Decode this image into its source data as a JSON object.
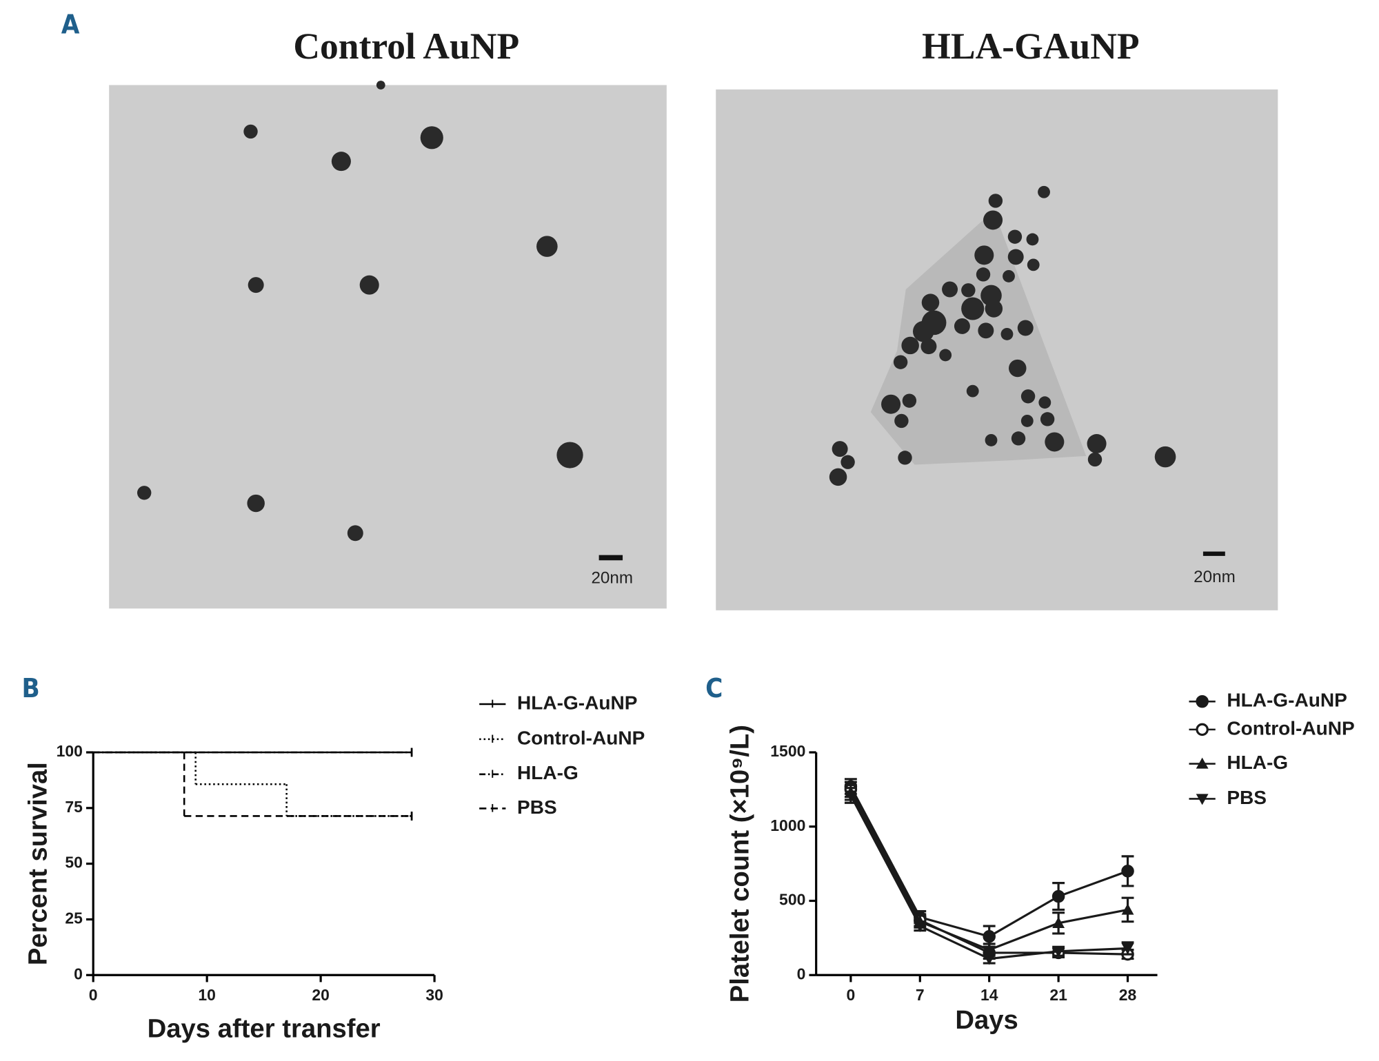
{
  "figure": {
    "panel_labels": [
      "A",
      "B",
      "C"
    ],
    "images": [
      {
        "title": "Control AuNP",
        "scale_bar": "20nm"
      },
      {
        "title": "HLA-GAuNP",
        "scale_bar": "20nm"
      }
    ]
  },
  "chart_data": [
    {
      "type": "step",
      "x_label": "Days after transfer",
      "y_label": "Percent survival",
      "xlim": [
        0,
        30
      ],
      "xticks": [
        0,
        10,
        20,
        30
      ],
      "ylim": [
        0,
        100
      ],
      "yticks": [
        0,
        25,
        50,
        75,
        100
      ],
      "series": [
        {
          "name": "HLA-G-AuNP",
          "color": "#000000",
          "linestyle": "solid",
          "x": [
            0,
            28
          ],
          "values": [
            100,
            100
          ]
        },
        {
          "name": "Control-AuNP",
          "color": "#000000",
          "linestyle": "dotted",
          "x": [
            0,
            9,
            17,
            28
          ],
          "values": [
            100,
            85.7,
            71.4,
            71.4
          ]
        },
        {
          "name": "HLA-G",
          "color": "#000000",
          "linestyle": "dashdot",
          "x": [
            0,
            28
          ],
          "values": [
            100,
            100
          ]
        },
        {
          "name": "PBS",
          "color": "#000000",
          "linestyle": "dashed",
          "x": [
            0,
            8,
            28
          ],
          "values": [
            100,
            71.4,
            71.4
          ]
        }
      ]
    },
    {
      "type": "line",
      "x_label": "Days",
      "y_label": "Platelet count (×10⁹/L)",
      "x": [
        0,
        7,
        14,
        21,
        28
      ],
      "xlim": [
        -3.5,
        31
      ],
      "xticks": [
        0,
        7,
        14,
        21,
        28
      ],
      "ylim": [
        0,
        1500
      ],
      "yticks": [
        0,
        500,
        1000,
        1500
      ],
      "series": [
        {
          "name": "HLA-G-AuNP",
          "color": "#1a1a1a",
          "marker": "circle",
          "values": [
            1270,
            390,
            260,
            530,
            700
          ],
          "errors": [
            50,
            40,
            70,
            90,
            100
          ]
        },
        {
          "name": "Control-AuNP",
          "color": "#1a1a1a",
          "marker": "circle-open",
          "values": [
            1250,
            370,
            150,
            150,
            140
          ],
          "errors": [
            50,
            40,
            40,
            30,
            30
          ]
        },
        {
          "name": "HLA-G",
          "color": "#1a1a1a",
          "marker": "triangle",
          "values": [
            1230,
            360,
            170,
            350,
            440
          ],
          "errors": [
            50,
            40,
            40,
            70,
            80
          ]
        },
        {
          "name": "PBS",
          "color": "#1a1a1a",
          "marker": "triangle-down",
          "values": [
            1210,
            330,
            110,
            160,
            180
          ],
          "errors": [
            50,
            30,
            30,
            30,
            40
          ]
        }
      ]
    }
  ]
}
